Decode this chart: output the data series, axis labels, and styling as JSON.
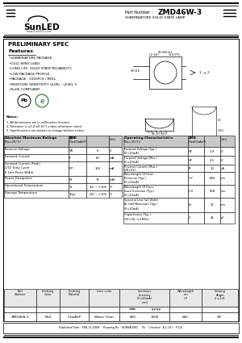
{
  "title": "ZMD46W-3",
  "subtitle": "SUBMINIATURE SOLID STATE LAMP",
  "company": "SunLED",
  "website": "www.SunLED.com",
  "section_title": "PRELIMINARY SPEC",
  "features": [
    "SUBMINIATURE PACKAGE.",
    "GULL WING LEAD.",
    "LONG LIFE  SOLID STATE RELIABILITY.",
    "LOW PACKAGE PROFILE.",
    "PACKAGE : 1000PCS / REEL.",
    "MOISTURE SENSITIVITY LEVEL : LEVEL 3.",
    "RoHS COMPLIANT."
  ],
  "abs_max_rows": [
    [
      "Reverse Voltage",
      "VR",
      "6",
      "V"
    ],
    [
      "Forward Current",
      "IF",
      "60",
      "mA"
    ],
    [
      "Forward Current (Peak)\n1/10 Duty Cycle\n0.1ms Pulse Width",
      "IFP",
      "160",
      "mA"
    ],
    [
      "Power Dissipation",
      "PT",
      "75",
      "mW"
    ],
    [
      "Operational Temperature",
      "To",
      "-40 ~ +105",
      "°C"
    ],
    [
      "Storage Temperature",
      "Tstg",
      "-40 ~ +100",
      "°C"
    ]
  ],
  "op_char_rows": [
    [
      "Forward Voltage (Typ.)\n(IF=20mA)",
      "VF",
      "1.9",
      "V"
    ],
    [
      "Forward Voltage (Max.)\n(IF=20mA)",
      "VF",
      "2.5",
      "V"
    ],
    [
      "Reverse Current (Max.)\n(VR=5V)",
      "IR",
      "10",
      "uA"
    ],
    [
      "Wavelength Of Peak\nEmission (Typ.)\n(IF=20mA)",
      "l P",
      "640",
      "nm"
    ],
    [
      "Wavelength Of Dom-\ninant Emission (Typ.)\n(IF=20mA)",
      "l D",
      "628",
      "nm"
    ],
    [
      "Spectral Line Full Width\nAt Half Maximum (Typ.)\n(IF=20mA)",
      "Dl",
      "27",
      "nm"
    ],
    [
      "Capacitance (Typ.)\n(VF=0V, f=1MHz)",
      "C",
      "45",
      "pF"
    ]
  ],
  "notes": [
    "All dimensions are in millimeters (inches).",
    "Tolerance is ±0.2(±0.01\") unless otherwise noted.",
    "Specifications are subject to change without notice."
  ],
  "footer": "Published Date : FEB.15,2008    Drawing No : SD9SA0001    YS    Checked : B.L.LIU    P.1/4",
  "bg_color": "#ffffff"
}
